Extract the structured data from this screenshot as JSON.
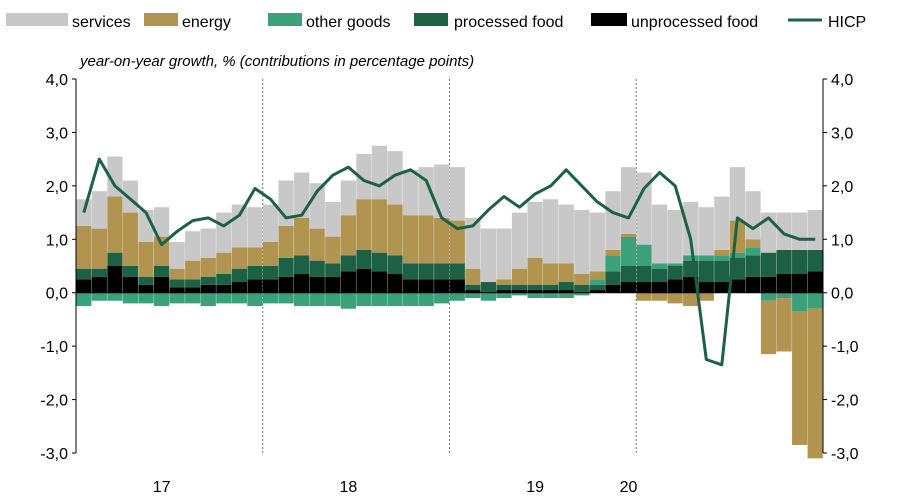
{
  "chart_data": {
    "type": "bar",
    "subtitle": "year-on-year growth, % (contributions in percentage points)",
    "ylim": [
      -3.0,
      4.0
    ],
    "y_ticks": [
      "4,0",
      "3,0",
      "2,0",
      "1,0",
      "0,0",
      "-1,0",
      "-2,0",
      "-3,0"
    ],
    "y_tick_values": [
      4,
      3,
      2,
      1,
      0,
      -1,
      -2,
      -3
    ],
    "x_labels": [
      {
        "text": "17",
        "month_index": 5
      },
      {
        "text": "18",
        "month_index": 17
      },
      {
        "text": "19",
        "month_index": 29
      },
      {
        "text": "20",
        "month_index": 35
      }
    ],
    "year_separator_indices": [
      12,
      24,
      36
    ],
    "months": 48,
    "legend": [
      {
        "name": "services",
        "color": "#c8c8c8",
        "kind": "box"
      },
      {
        "name": "energy",
        "color": "#b09450",
        "kind": "box"
      },
      {
        "name": "other goods",
        "color": "#3aa17a",
        "kind": "box"
      },
      {
        "name": "processed food",
        "color": "#1c6046",
        "kind": "box"
      },
      {
        "name": "unprocessed food",
        "color": "#000000",
        "kind": "box"
      },
      {
        "name": "HICP",
        "color": "#1c6046",
        "kind": "line"
      }
    ],
    "series": [
      {
        "name": "unprocessed food",
        "color": "#000000",
        "values": [
          0.25,
          0.3,
          0.5,
          0.3,
          0.15,
          0.3,
          0.1,
          0.1,
          0.15,
          0.15,
          0.2,
          0.25,
          0.25,
          0.3,
          0.35,
          0.3,
          0.3,
          0.4,
          0.45,
          0.4,
          0.35,
          0.25,
          0.25,
          0.25,
          0.25,
          0.05,
          0.0,
          0.05,
          0.05,
          0.05,
          0.05,
          0.05,
          0.0,
          0.05,
          0.15,
          0.2,
          0.2,
          0.2,
          0.25,
          0.3,
          0.2,
          0.2,
          0.25,
          0.3,
          0.3,
          0.35,
          0.35,
          0.4
        ]
      },
      {
        "name": "processed food",
        "color": "#1c6046",
        "values": [
          0.2,
          0.15,
          0.25,
          0.2,
          0.15,
          0.2,
          0.15,
          0.15,
          0.15,
          0.2,
          0.25,
          0.25,
          0.25,
          0.35,
          0.35,
          0.3,
          0.25,
          0.3,
          0.35,
          0.35,
          0.35,
          0.3,
          0.3,
          0.3,
          0.3,
          0.1,
          0.2,
          0.1,
          0.1,
          0.1,
          0.1,
          0.15,
          0.15,
          0.1,
          0.25,
          0.3,
          0.3,
          0.25,
          0.25,
          0.3,
          0.4,
          0.4,
          0.4,
          0.4,
          0.45,
          0.45,
          0.45,
          0.4
        ]
      },
      {
        "name": "other goods",
        "color": "#3aa17a",
        "values": [
          -0.25,
          -0.15,
          -0.15,
          -0.2,
          -0.2,
          -0.25,
          -0.2,
          -0.2,
          -0.25,
          -0.2,
          -0.2,
          -0.25,
          -0.2,
          -0.2,
          -0.25,
          -0.25,
          -0.25,
          -0.3,
          -0.25,
          -0.25,
          -0.25,
          -0.25,
          -0.25,
          -0.2,
          -0.15,
          -0.1,
          -0.15,
          -0.1,
          -0.05,
          -0.1,
          -0.1,
          -0.1,
          -0.05,
          0.1,
          0.3,
          0.55,
          0.4,
          0.1,
          0.05,
          0.1,
          0.1,
          0.1,
          0.1,
          0.15,
          -0.15,
          -0.1,
          -0.35,
          -0.3
        ]
      },
      {
        "name": "energy",
        "color": "#b09450",
        "values": [
          0.8,
          0.75,
          1.05,
          1.0,
          0.65,
          0.55,
          0.2,
          0.35,
          0.35,
          0.4,
          0.4,
          0.35,
          0.45,
          0.6,
          0.7,
          0.6,
          0.5,
          0.75,
          0.95,
          1.0,
          0.95,
          0.9,
          0.9,
          0.85,
          0.8,
          0.3,
          0.0,
          0.1,
          0.3,
          0.5,
          0.4,
          0.35,
          0.2,
          0.15,
          0.1,
          0.05,
          -0.15,
          -0.15,
          -0.2,
          -0.25,
          -0.15,
          0.1,
          0.6,
          0.15,
          -1.0,
          -1.0,
          -2.5,
          -2.8
        ]
      },
      {
        "name": "services",
        "color": "#c8c8c8",
        "values": [
          0.5,
          0.7,
          0.75,
          0.6,
          0.6,
          0.55,
          0.5,
          0.55,
          0.55,
          0.75,
          0.8,
          0.75,
          0.7,
          0.85,
          0.85,
          0.85,
          0.65,
          0.65,
          0.85,
          1.0,
          1.0,
          0.85,
          0.9,
          1.0,
          1.0,
          0.95,
          1.0,
          0.95,
          1.05,
          1.05,
          1.2,
          1.1,
          1.2,
          1.1,
          1.1,
          1.25,
          1.35,
          1.1,
          1.0,
          1.0,
          0.9,
          1.0,
          1.0,
          0.9,
          0.75,
          0.7,
          0.7,
          0.75
        ]
      },
      {
        "name": "HICP",
        "color": "#1c6046",
        "kind": "line",
        "values": [
          1.5,
          2.5,
          2.0,
          1.75,
          1.5,
          0.9,
          1.15,
          1.35,
          1.4,
          1.25,
          1.45,
          1.95,
          1.75,
          1.4,
          1.45,
          1.9,
          2.2,
          2.35,
          2.1,
          2.0,
          2.2,
          2.3,
          2.1,
          1.4,
          1.2,
          1.25,
          1.55,
          1.8,
          1.6,
          1.85,
          2.0,
          2.3,
          2.0,
          1.7,
          1.5,
          1.4,
          1.95,
          2.25,
          2.0,
          1.0,
          -1.25,
          -1.35,
          1.4,
          1.2,
          1.4,
          1.1,
          1.0,
          1.0
        ]
      }
    ]
  }
}
